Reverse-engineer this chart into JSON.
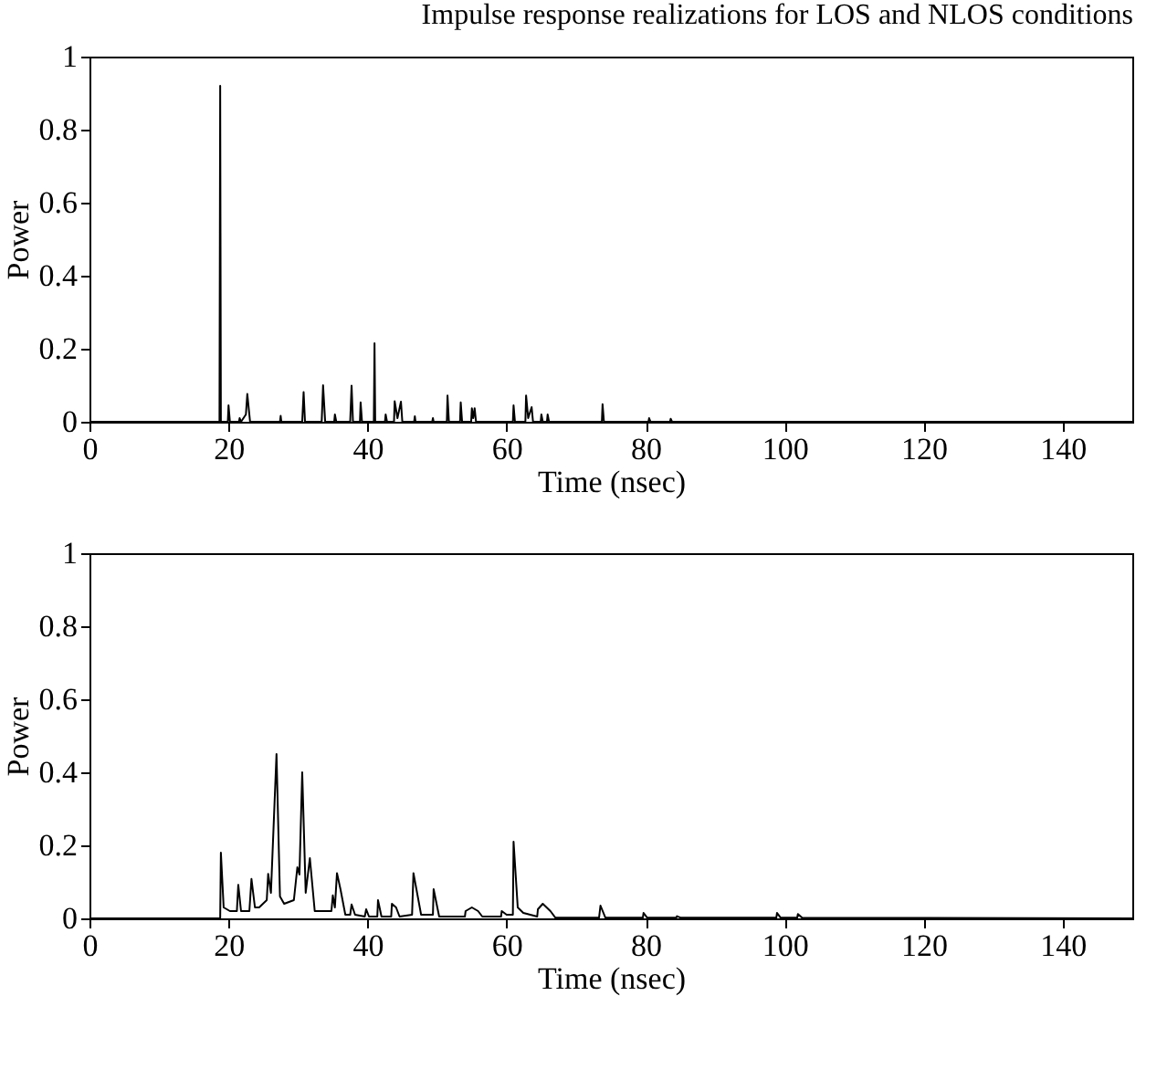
{
  "chart_data": [
    {
      "type": "line",
      "title": "Impulse response realizations for LOS and NLOS conditions",
      "xlabel": "Time (nsec)",
      "ylabel": "Power",
      "xlim": [
        0,
        150
      ],
      "ylim": [
        0,
        1
      ],
      "xticks": [
        0,
        20,
        40,
        60,
        80,
        100,
        120,
        140
      ],
      "yticks": [
        0,
        0.2,
        0.4,
        0.6,
        0.8,
        1
      ],
      "grid": false,
      "x": [
        0,
        18.7,
        18.8,
        18.9,
        19.9,
        20.0,
        20.2,
        21.5,
        21.6,
        21.8,
        22.5,
        22.7,
        23.1,
        27.4,
        27.5,
        27.6,
        30.6,
        30.8,
        31.0,
        33.4,
        33.6,
        33.9,
        35.2,
        35.3,
        35.5,
        37.5,
        37.7,
        37.9,
        38.9,
        39.0,
        39.2,
        40.9,
        41.0,
        41.1,
        42.5,
        42.6,
        42.8,
        43.8,
        43.9,
        44.3,
        44.8,
        45.0,
        46.7,
        46.8,
        46.9,
        49.3,
        49.4,
        49.5,
        51.4,
        51.5,
        51.7,
        53.3,
        53.4,
        53.6,
        54.9,
        55.0,
        55.2,
        55.4,
        55.6,
        60.9,
        61.0,
        61.2,
        62.7,
        62.8,
        63.1,
        63.6,
        63.8,
        64.9,
        65.0,
        65.2,
        65.8,
        65.9,
        66.1,
        73.7,
        73.8,
        74.0,
        80.4,
        80.5,
        80.7,
        83.5,
        83.6,
        83.8,
        150
      ],
      "series": [
        {
          "color": "#000000",
          "values": [
            0,
            0,
            0.92,
            0,
            0,
            0.045,
            0,
            0,
            0.01,
            0,
            0.02,
            0.076,
            0,
            0,
            0.016,
            0,
            0,
            0.081,
            0,
            0,
            0.1,
            0,
            0,
            0.02,
            0,
            0,
            0.099,
            0,
            0,
            0.053,
            0,
            0,
            0.215,
            0,
            0,
            0.02,
            0,
            0,
            0.056,
            0.01,
            0.055,
            0,
            0,
            0.015,
            0,
            0,
            0.01,
            0,
            0,
            0.072,
            0,
            0,
            0.053,
            0,
            0,
            0.037,
            0.01,
            0.037,
            0,
            0,
            0.045,
            0,
            0,
            0.072,
            0.01,
            0.04,
            0,
            0,
            0.02,
            0,
            0,
            0.02,
            0,
            0,
            0.048,
            0,
            0,
            0.01,
            0,
            0,
            0.008,
            0,
            0
          ]
        }
      ]
    },
    {
      "type": "line",
      "xlabel": "Time (nsec)",
      "ylabel": "Power",
      "xlim": [
        0,
        150
      ],
      "ylim": [
        0,
        1
      ],
      "xticks": [
        0,
        20,
        40,
        60,
        80,
        100,
        120,
        140
      ],
      "yticks": [
        0,
        0.2,
        0.4,
        0.6,
        0.8,
        1
      ],
      "grid": false,
      "x": [
        0,
        18.8,
        18.9,
        19.3,
        20.2,
        21.2,
        21.4,
        21.8,
        23.0,
        23.3,
        23.8,
        24.4,
        25.5,
        25.7,
        26.1,
        26.9,
        27.4,
        28.0,
        29.4,
        29.9,
        30.2,
        30.6,
        31.1,
        31.7,
        32.4,
        34.8,
        35.0,
        35.3,
        35.6,
        36.1,
        36.8,
        37.5,
        37.7,
        38.2,
        39.6,
        39.8,
        40.2,
        41.4,
        41.5,
        42.0,
        43.4,
        43.5,
        44.1,
        44.6,
        46.4,
        46.6,
        47.7,
        49.4,
        49.5,
        50.3,
        54.0,
        54.1,
        55.0,
        55.9,
        56.5,
        59.2,
        59.3,
        60.0,
        60.9,
        61.0,
        61.6,
        62.4,
        64.4,
        64.5,
        65.2,
        66.3,
        67,
        73.3,
        73.5,
        74.2,
        79.6,
        79.7,
        80.2,
        84.4,
        84.5,
        85,
        98.8,
        98.9,
        99.4,
        101.8,
        101.9,
        102.5,
        150
      ],
      "series": [
        {
          "color": "#000000",
          "values": [
            0,
            0,
            0.18,
            0.03,
            0.02,
            0.02,
            0.092,
            0.02,
            0.02,
            0.108,
            0.03,
            0.03,
            0.05,
            0.122,
            0.07,
            0.45,
            0.06,
            0.04,
            0.05,
            0.14,
            0.12,
            0.4,
            0.07,
            0.165,
            0.02,
            0.02,
            0.063,
            0.03,
            0.124,
            0.08,
            0.01,
            0.01,
            0.038,
            0.01,
            0.005,
            0.025,
            0.005,
            0.005,
            0.05,
            0.005,
            0.005,
            0.04,
            0.03,
            0.005,
            0.01,
            0.124,
            0.01,
            0.01,
            0.08,
            0.005,
            0.005,
            0.02,
            0.03,
            0.02,
            0.005,
            0.005,
            0.02,
            0.01,
            0.01,
            0.21,
            0.03,
            0.015,
            0.005,
            0.025,
            0.04,
            0.02,
            0.002,
            0.002,
            0.035,
            0.002,
            0.002,
            0.015,
            0.002,
            0.002,
            0.006,
            0.002,
            0.002,
            0.015,
            0.002,
            0.002,
            0.012,
            0.002,
            0
          ]
        }
      ]
    }
  ]
}
